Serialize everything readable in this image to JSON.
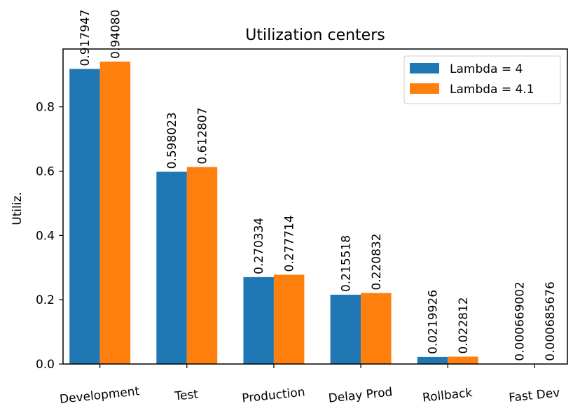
{
  "chart_data": {
    "type": "bar",
    "title": "Utilization centers",
    "xlabel": "",
    "ylabel": "Utiliz.",
    "categories": [
      "Development",
      "Test",
      "Production",
      "Delay Prod",
      "Rollback",
      "Fast Dev"
    ],
    "series": [
      {
        "name": "Lambda = 4",
        "color": "#1f77b4",
        "values": [
          0.917947,
          0.598023,
          0.270334,
          0.215518,
          0.0219926,
          0.000669002
        ],
        "labels": [
          "0.917947",
          "0.598023",
          "0.270334",
          "0.215518",
          "0.0219926",
          "0.000669002"
        ]
      },
      {
        "name": "Lambda = 4.1",
        "color": "#ff7f0e",
        "values": [
          0.9408,
          0.612807,
          0.277714,
          0.220832,
          0.022812,
          0.000685676
        ],
        "labels": [
          "0.94080",
          "0.612807",
          "0.277714",
          "0.220832",
          "0.022812",
          "0.000685676"
        ]
      }
    ],
    "ylim": [
      0,
      0.98
    ],
    "yticks": [
      "0.0",
      "0.2",
      "0.4",
      "0.6",
      "0.8"
    ],
    "legend_position": "top-right",
    "grid": false
  }
}
